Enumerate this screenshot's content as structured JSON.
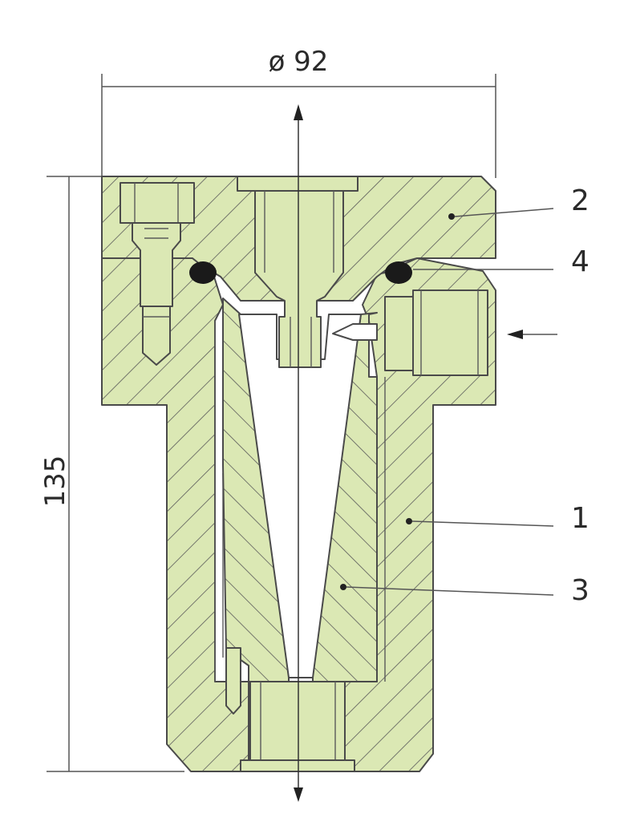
{
  "dimensions": {
    "diameter_label": "ø 92",
    "height_label": "135"
  },
  "callouts": [
    {
      "label": "2"
    },
    {
      "label": "4"
    },
    {
      "label": "1"
    },
    {
      "label": "3"
    }
  ],
  "colors": {
    "part_fill": "#dbe8b4",
    "hatch_line": "#5a5a5a",
    "outline": "#4a4a4a",
    "oring": "#1a1a1a"
  }
}
